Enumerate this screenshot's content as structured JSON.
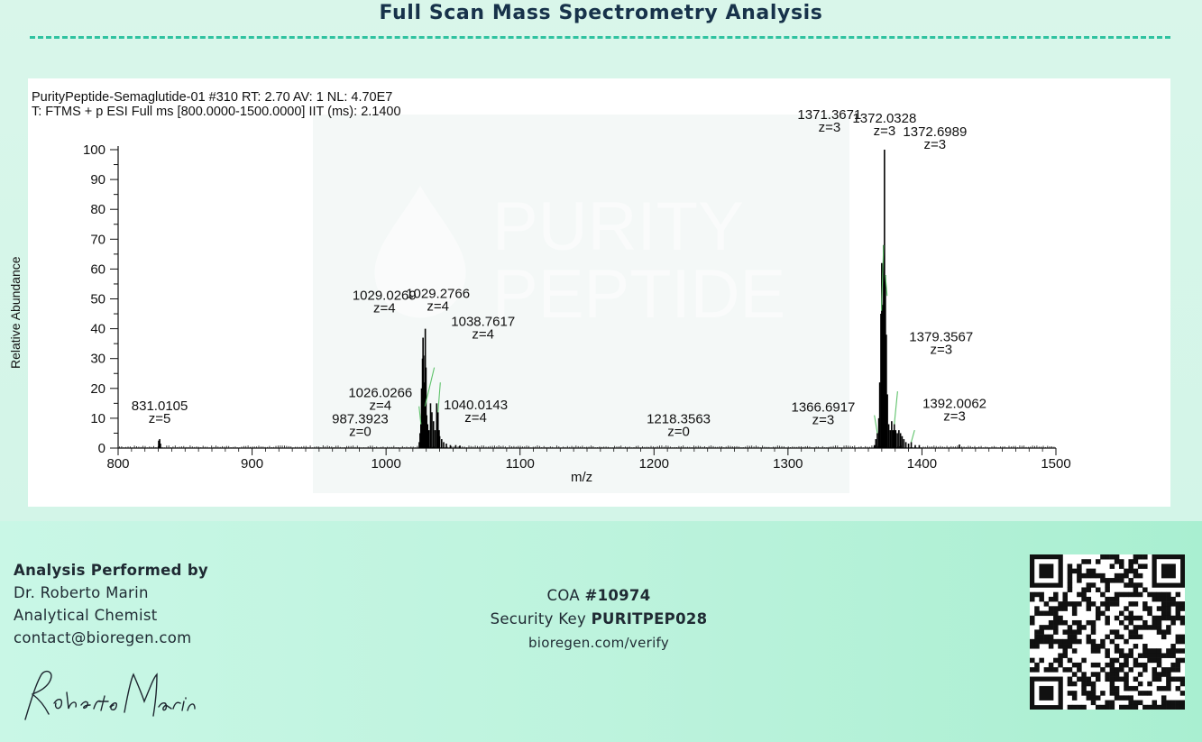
{
  "page": {
    "title": "Full Scan Mass Spectrometry Analysis",
    "accent_color": "#2fc2a0",
    "title_color": "#17324a"
  },
  "chart_data": {
    "type": "line",
    "header_line1": "PurityPeptide-Semaglutide-01 #310 RT: 2.70 AV: 1 NL: 4.70E7",
    "header_line2": "T: FTMS + p ESI Full ms [800.0000-1500.0000] IIT (ms): 2.1400",
    "xlabel": "m/z",
    "ylabel": "Relative Abundance",
    "xlim": [
      800,
      1500
    ],
    "ylim": [
      0,
      100
    ],
    "x_ticks": [
      "800",
      "900",
      "1000",
      "1100",
      "1200",
      "1300",
      "1400",
      "1500"
    ],
    "y_ticks": [
      "0",
      "10",
      "20",
      "30",
      "40",
      "50",
      "60",
      "70",
      "80",
      "90",
      "100"
    ],
    "watermark": [
      "PURITY",
      "PEPTIDE"
    ],
    "peaks": [
      {
        "mz": 830.3,
        "ab": 2.5
      },
      {
        "mz": 831.0105,
        "ab": 3
      },
      {
        "mz": 831.6,
        "ab": 1.5
      },
      {
        "mz": 1024.8,
        "ab": 2
      },
      {
        "mz": 1025.4,
        "ab": 5
      },
      {
        "mz": 1026.0266,
        "ab": 8
      },
      {
        "mz": 1026.5,
        "ab": 20
      },
      {
        "mz": 1027.2,
        "ab": 30
      },
      {
        "mz": 1027.6,
        "ab": 37
      },
      {
        "mz": 1028.0,
        "ab": 31
      },
      {
        "mz": 1028.4,
        "ab": 22
      },
      {
        "mz": 1029.0269,
        "ab": 14
      },
      {
        "mz": 1029.2766,
        "ab": 40
      },
      {
        "mz": 1029.8,
        "ab": 27
      },
      {
        "mz": 1030.3,
        "ab": 11
      },
      {
        "mz": 1031.0,
        "ab": 8
      },
      {
        "mz": 1032.0,
        "ab": 6
      },
      {
        "mz": 1033.2,
        "ab": 15
      },
      {
        "mz": 1034.2,
        "ab": 12
      },
      {
        "mz": 1035.4,
        "ab": 9
      },
      {
        "mz": 1036.6,
        "ab": 6
      },
      {
        "mz": 1037.8,
        "ab": 15
      },
      {
        "mz": 1038.7617,
        "ab": 12
      },
      {
        "mz": 1039.6,
        "ab": 6
      },
      {
        "mz": 1040.0143,
        "ab": 4
      },
      {
        "mz": 1041.5,
        "ab": 3
      },
      {
        "mz": 1043.0,
        "ab": 2
      },
      {
        "mz": 1045.0,
        "ab": 1.5
      },
      {
        "mz": 1048.0,
        "ab": 1
      },
      {
        "mz": 1052.0,
        "ab": 1
      },
      {
        "mz": 1055.0,
        "ab": 0.8
      },
      {
        "mz": 1364.5,
        "ab": 1
      },
      {
        "mz": 1365.6,
        "ab": 3
      },
      {
        "mz": 1366.6917,
        "ab": 5
      },
      {
        "mz": 1367.8,
        "ab": 10
      },
      {
        "mz": 1368.5,
        "ab": 22
      },
      {
        "mz": 1369.4,
        "ab": 45
      },
      {
        "mz": 1370.0,
        "ab": 62
      },
      {
        "mz": 1370.6,
        "ab": 48
      },
      {
        "mz": 1371.3671,
        "ab": 68
      },
      {
        "mz": 1372.0328,
        "ab": 100
      },
      {
        "mz": 1372.6989,
        "ab": 58
      },
      {
        "mz": 1373.4,
        "ab": 38
      },
      {
        "mz": 1374.2,
        "ab": 18
      },
      {
        "mz": 1375.2,
        "ab": 8
      },
      {
        "mz": 1376.3,
        "ab": 6
      },
      {
        "mz": 1377.4,
        "ab": 9
      },
      {
        "mz": 1378.4,
        "ab": 6
      },
      {
        "mz": 1379.3567,
        "ab": 8
      },
      {
        "mz": 1380.4,
        "ab": 6
      },
      {
        "mz": 1381.6,
        "ab": 5
      },
      {
        "mz": 1382.8,
        "ab": 6
      },
      {
        "mz": 1384.0,
        "ab": 5
      },
      {
        "mz": 1385.2,
        "ab": 4
      },
      {
        "mz": 1386.5,
        "ab": 3
      },
      {
        "mz": 1388.0,
        "ab": 2
      },
      {
        "mz": 1390.0,
        "ab": 1.5
      },
      {
        "mz": 1392.0062,
        "ab": 2
      },
      {
        "mz": 1395.0,
        "ab": 1
      },
      {
        "mz": 1398.0,
        "ab": 1
      },
      {
        "mz": 1428.0,
        "ab": 1.2
      }
    ],
    "annotations": [
      {
        "mz": "831.0105",
        "z": "z=5",
        "x": 831.0105,
        "y": 3
      },
      {
        "mz": "987.3923",
        "z": "z=0",
        "x": 987.3923,
        "y": 0.5
      },
      {
        "mz": "1026.0266",
        "z": "z=4",
        "x": 1026.0266,
        "y": 8
      },
      {
        "mz": "1029.0269",
        "z": "z=4",
        "x": 1029.0269,
        "y": 14
      },
      {
        "mz": "1029.2766",
        "z": "z=4",
        "x": 1029.2766,
        "y": 40
      },
      {
        "mz": "1038.7617",
        "z": "z=4",
        "x": 1038.7617,
        "y": 12
      },
      {
        "mz": "1040.0143",
        "z": "z=4",
        "x": 1040.0143,
        "y": 4
      },
      {
        "mz": "1218.3563",
        "z": "z=0",
        "x": 1218.3563,
        "y": 0.5
      },
      {
        "mz": "1366.6917",
        "z": "z=3",
        "x": 1366.6917,
        "y": 5
      },
      {
        "mz": "1371.3671",
        "z": "z=3",
        "x": 1371.3671,
        "y": 68
      },
      {
        "mz": "1372.0328",
        "z": "z=3",
        "x": 1372.0328,
        "y": 100
      },
      {
        "mz": "1372.6989",
        "z": "z=3",
        "x": 1372.6989,
        "y": 58
      },
      {
        "mz": "1379.3567",
        "z": "z=3",
        "x": 1379.3567,
        "y": 8
      },
      {
        "mz": "1392.0062",
        "z": "z=3",
        "x": 1392.0062,
        "y": 2
      }
    ]
  },
  "footer": {
    "performer_heading": "Analysis Performed by",
    "performer_name": "Dr. Roberto Marin",
    "performer_role": "Analytical Chemist",
    "performer_email": "contact@bioregen.com",
    "signature_text": "Roberto Marin",
    "coa_prefix": "COA",
    "coa_number": "#10974",
    "security_prefix": "Security Key",
    "security_key": "PURITPEP028",
    "verify_url": "bioregen.com/verify"
  }
}
